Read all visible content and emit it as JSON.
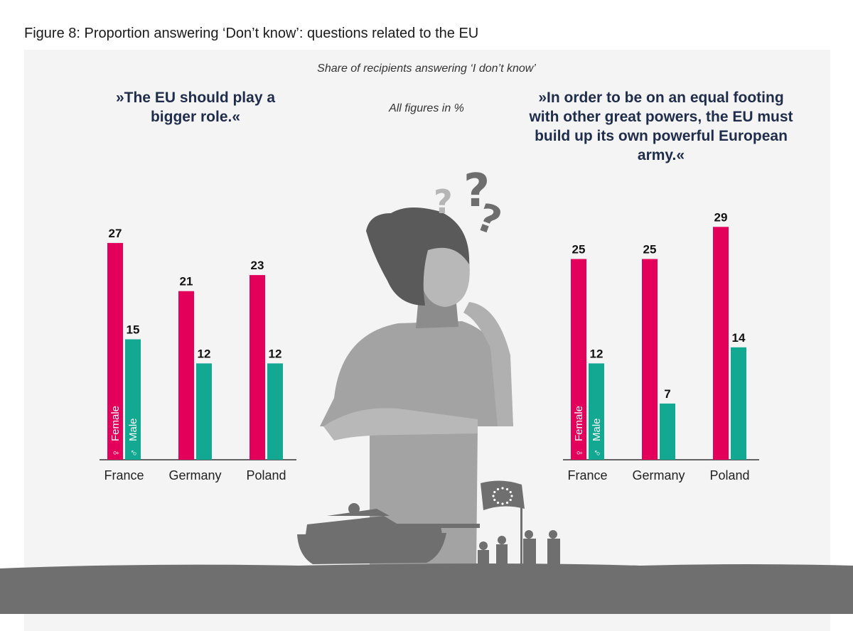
{
  "title": "Figure 8: Proportion answering ‘Don’t know’: questions related to the EU",
  "subtitle": "Share of recipients answering ‘I don’t know’",
  "units_note": "All figures in %",
  "colors": {
    "female": "#e2005a",
    "male": "#12a892",
    "background": "#f4f4f4",
    "illustration": "#808080"
  },
  "chart_data": [
    {
      "type": "bar",
      "title": "»The EU should play a bigger role.«",
      "categories": [
        "France",
        "Germany",
        "Poland"
      ],
      "series": [
        {
          "name": "Female",
          "values": [
            27,
            21,
            23
          ]
        },
        {
          "name": "Male",
          "values": [
            15,
            12,
            12
          ]
        }
      ],
      "legend": "inside first bar pair",
      "grid": false
    },
    {
      "type": "bar",
      "title": "»In order to be on an equal footing with other great powers, the EU must build up its own powerful European army.«",
      "categories": [
        "France",
        "Germany",
        "Poland"
      ],
      "series": [
        {
          "name": "Female",
          "values": [
            25,
            25,
            29
          ]
        },
        {
          "name": "Male",
          "values": [
            12,
            7,
            14
          ]
        }
      ],
      "legend": "inside first bar pair",
      "grid": false
    }
  ],
  "icons": [
    "female-symbol-icon",
    "male-symbol-icon",
    "woman-thinking-illustration",
    "question-mark-icon",
    "tank-illustration",
    "soldiers-illustration",
    "eu-flag-icon"
  ]
}
